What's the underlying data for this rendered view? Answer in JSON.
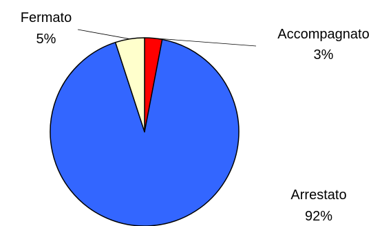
{
  "chart_data": {
    "type": "pie",
    "slices": [
      {
        "label": "Accompagnato",
        "value": 3,
        "value_label": "3%",
        "color": "#ff0000"
      },
      {
        "label": "Arrestato",
        "value": 92,
        "value_label": "92%",
        "color": "#3366ff"
      },
      {
        "label": "Fermato",
        "value": 5,
        "value_label": "5%",
        "color": "#ffffcc"
      }
    ],
    "start_angle": "12 o'clock",
    "direction": "clockwise",
    "outline_color": "#000000",
    "legend": "none"
  }
}
